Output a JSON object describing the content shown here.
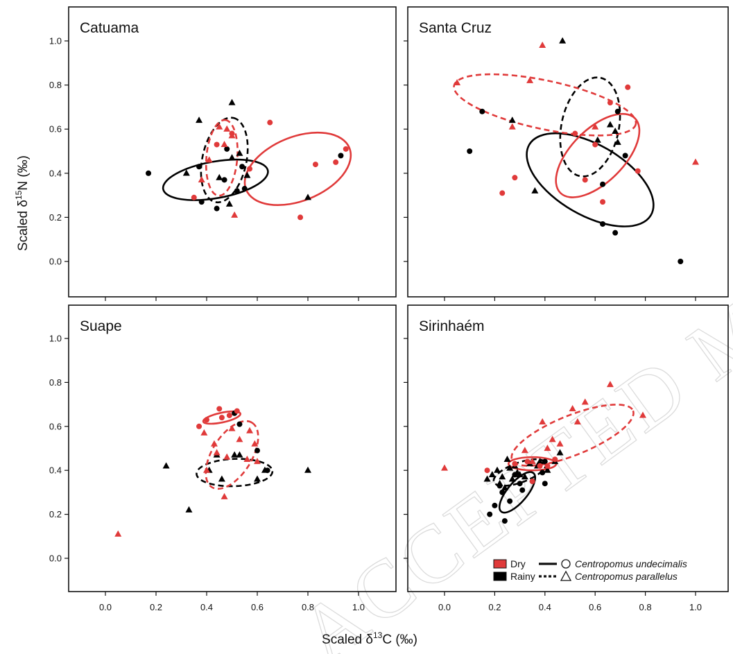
{
  "watermark": "ACCEPTED MANUSCRIPT",
  "colors": {
    "dry": "#e03a3a",
    "rainy": "#000000"
  },
  "chart_data": {
    "type": "scatter",
    "xlabel": "Scaled δ13C (‰)",
    "ylabel": "Scaled δ15N (‰)",
    "xlim": [
      -0.15,
      1.15
    ],
    "ylim": [
      -0.13,
      1.13
    ],
    "x_ticks": [
      "0.0",
      "0.2",
      "0.4",
      "0.6",
      "0.8",
      "1.0"
    ],
    "y_ticks": [
      "0.0",
      "0.2",
      "0.4",
      "0.6",
      "0.8",
      "1.0"
    ],
    "grid": false,
    "legend": {
      "placement": "bottom-right of Sirinhaém panel",
      "seasons": [
        {
          "label": "Dry",
          "color": "#e03a3a"
        },
        {
          "label": "Rainy",
          "color": "#000000"
        }
      ],
      "species": [
        {
          "label": "Centropomus undecimalis",
          "marker": "circle",
          "line": "solid"
        },
        {
          "label": "Centropomus parallelus",
          "marker": "triangle",
          "line": "dashed"
        }
      ]
    },
    "panels": [
      {
        "title": "Catuama",
        "points": [
          {
            "season": "rainy",
            "species": "undecimalis",
            "x": [
              0.17,
              0.37,
              0.38,
              0.44,
              0.48,
              0.47,
              0.52,
              0.54,
              0.55,
              0.93
            ],
            "y": [
              0.4,
              0.43,
              0.27,
              0.24,
              0.51,
              0.37,
              0.32,
              0.43,
              0.33,
              0.48
            ]
          },
          {
            "season": "rainy",
            "species": "parallelus",
            "x": [
              0.32,
              0.37,
              0.45,
              0.49,
              0.5,
              0.53,
              0.56,
              0.5,
              0.8
            ],
            "y": [
              0.4,
              0.64,
              0.38,
              0.26,
              0.72,
              0.49,
              0.39,
              0.47,
              0.29
            ]
          },
          {
            "season": "dry",
            "species": "undecimalis",
            "x": [
              0.35,
              0.44,
              0.5,
              0.57,
              0.65,
              0.77,
              0.83,
              0.91,
              0.95
            ],
            "y": [
              0.29,
              0.53,
              0.58,
              0.42,
              0.63,
              0.2,
              0.44,
              0.45,
              0.51
            ]
          },
          {
            "season": "dry",
            "species": "parallelus",
            "x": [
              0.38,
              0.41,
              0.45,
              0.47,
              0.48,
              0.5,
              0.51
            ],
            "y": [
              0.37,
              0.46,
              0.61,
              0.53,
              0.6,
              0.57,
              0.21
            ]
          }
        ],
        "ellipses": [
          {
            "season": "rainy",
            "species": "undecimalis",
            "cx": 0.435,
            "cy": 0.37,
            "rx": 0.21,
            "ry": 0.083,
            "angle": 10
          },
          {
            "season": "rainy",
            "species": "parallelus",
            "cx": 0.47,
            "cy": 0.46,
            "rx": 0.17,
            "ry": 0.1,
            "angle": 78
          },
          {
            "season": "dry",
            "species": "undecimalis",
            "cx": 0.76,
            "cy": 0.42,
            "rx": 0.22,
            "ry": 0.145,
            "angle": 22
          },
          {
            "season": "dry",
            "species": "parallelus",
            "cx": 0.46,
            "cy": 0.47,
            "rx": 0.15,
            "ry": 0.07,
            "angle": 85
          }
        ]
      },
      {
        "title": "Santa Cruz",
        "points": [
          {
            "season": "rainy",
            "species": "undecimalis",
            "x": [
              0.1,
              0.15,
              0.63,
              0.63,
              0.68,
              0.69,
              0.72,
              0.94
            ],
            "y": [
              0.5,
              0.68,
              0.35,
              0.17,
              0.13,
              0.68,
              0.48,
              0.0
            ]
          },
          {
            "season": "rainy",
            "species": "parallelus",
            "x": [
              0.27,
              0.36,
              0.47,
              0.61,
              0.66,
              0.68,
              0.69
            ],
            "y": [
              0.64,
              0.32,
              1.0,
              0.55,
              0.62,
              0.59,
              0.54
            ]
          },
          {
            "season": "dry",
            "species": "undecimalis",
            "x": [
              0.23,
              0.28,
              0.52,
              0.56,
              0.6,
              0.63,
              0.66,
              0.73,
              0.77
            ],
            "y": [
              0.31,
              0.38,
              0.58,
              0.37,
              0.53,
              0.27,
              0.72,
              0.79,
              0.41
            ]
          },
          {
            "season": "dry",
            "species": "parallelus",
            "x": [
              0.05,
              0.27,
              0.34,
              0.39,
              0.6,
              1.0
            ],
            "y": [
              0.81,
              0.61,
              0.82,
              0.98,
              0.61,
              0.45
            ]
          }
        ],
        "ellipses": [
          {
            "season": "rainy",
            "species": "undecimalis",
            "cx": 0.58,
            "cy": 0.37,
            "rx": 0.28,
            "ry": 0.16,
            "angle": -30
          },
          {
            "season": "rainy",
            "species": "parallelus",
            "cx": 0.58,
            "cy": 0.61,
            "rx": 0.2,
            "ry": 0.13,
            "angle": 78
          },
          {
            "season": "dry",
            "species": "undecimalis",
            "cx": 0.61,
            "cy": 0.48,
            "rx": 0.21,
            "ry": 0.12,
            "angle": 45
          },
          {
            "season": "dry",
            "species": "parallelus",
            "cx": 0.4,
            "cy": 0.71,
            "rx": 0.37,
            "ry": 0.11,
            "angle": -12
          }
        ]
      },
      {
        "title": "Suape",
        "points": [
          {
            "season": "rainy",
            "species": "undecimalis",
            "x": [
              0.51,
              0.53,
              0.6,
              0.64
            ],
            "y": [
              0.66,
              0.61,
              0.49,
              0.4
            ]
          },
          {
            "season": "rainy",
            "species": "parallelus",
            "x": [
              0.24,
              0.33,
              0.41,
              0.44,
              0.46,
              0.51,
              0.53,
              0.6,
              0.63,
              0.8
            ],
            "y": [
              0.42,
              0.22,
              0.4,
              0.47,
              0.36,
              0.47,
              0.47,
              0.36,
              0.4,
              0.4
            ]
          },
          {
            "season": "dry",
            "species": "undecimalis",
            "x": [
              0.37,
              0.4,
              0.45,
              0.46,
              0.49,
              0.52
            ],
            "y": [
              0.6,
              0.63,
              0.68,
              0.64,
              0.65,
              0.67
            ]
          },
          {
            "season": "dry",
            "species": "parallelus",
            "x": [
              0.05,
              0.39,
              0.4,
              0.43,
              0.44,
              0.47,
              0.48,
              0.5,
              0.53,
              0.56,
              0.57,
              0.59,
              0.6
            ],
            "y": [
              0.11,
              0.57,
              0.4,
              0.52,
              0.48,
              0.28,
              0.46,
              0.59,
              0.54,
              0.45,
              0.58,
              0.52,
              0.44
            ]
          }
        ],
        "ellipses": [
          {
            "season": "rainy",
            "species": "parallelus",
            "cx": 0.51,
            "cy": 0.39,
            "rx": 0.15,
            "ry": 0.062,
            "angle": 2
          },
          {
            "season": "dry",
            "species": "undecimalis",
            "cx": 0.46,
            "cy": 0.64,
            "rx": 0.075,
            "ry": 0.022,
            "angle": 12
          },
          {
            "season": "dry",
            "species": "parallelus",
            "cx": 0.5,
            "cy": 0.47,
            "rx": 0.15,
            "ry": 0.09,
            "angle": 58
          }
        ]
      },
      {
        "title": "Sirinhaém",
        "points": [
          {
            "season": "rainy",
            "species": "undecimalis",
            "x": [
              0.18,
              0.2,
              0.22,
              0.23,
              0.24,
              0.26,
              0.28,
              0.3,
              0.31,
              0.35,
              0.39,
              0.4,
              0.4
            ],
            "y": [
              0.2,
              0.24,
              0.33,
              0.3,
              0.17,
              0.26,
              0.38,
              0.34,
              0.31,
              0.35,
              0.39,
              0.34,
              0.44
            ]
          },
          {
            "season": "rainy",
            "species": "parallelus",
            "x": [
              0.17,
              0.19,
              0.21,
              0.22,
              0.23,
              0.24,
              0.25,
              0.26,
              0.27,
              0.28,
              0.29,
              0.3,
              0.32,
              0.34,
              0.37,
              0.38,
              0.41,
              0.44,
              0.46
            ],
            "y": [
              0.36,
              0.38,
              0.4,
              0.34,
              0.37,
              0.32,
              0.45,
              0.41,
              0.36,
              0.42,
              0.39,
              0.38,
              0.37,
              0.43,
              0.42,
              0.44,
              0.4,
              0.44,
              0.48
            ]
          },
          {
            "season": "dry",
            "species": "undecimalis",
            "x": [
              0.17,
              0.28,
              0.33,
              0.35,
              0.38,
              0.41,
              0.44
            ],
            "y": [
              0.4,
              0.43,
              0.44,
              0.35,
              0.42,
              0.42,
              0.45
            ]
          },
          {
            "season": "dry",
            "species": "parallelus",
            "x": [
              0.0,
              0.32,
              0.35,
              0.39,
              0.41,
              0.43,
              0.46,
              0.51,
              0.53,
              0.56,
              0.66,
              0.79
            ],
            "y": [
              0.41,
              0.49,
              0.44,
              0.62,
              0.5,
              0.54,
              0.52,
              0.68,
              0.62,
              0.71,
              0.79,
              0.65
            ]
          }
        ],
        "ellipses": [
          {
            "season": "rainy",
            "species": "undecimalis",
            "cx": 0.29,
            "cy": 0.3,
            "rx": 0.1,
            "ry": 0.045,
            "angle": 50
          },
          {
            "season": "rainy",
            "species": "parallelus",
            "cx": 0.3,
            "cy": 0.39,
            "rx": 0.11,
            "ry": 0.045,
            "angle": 20
          },
          {
            "season": "dry",
            "species": "undecimalis",
            "cx": 0.35,
            "cy": 0.43,
            "rx": 0.095,
            "ry": 0.03,
            "angle": 0
          },
          {
            "season": "dry",
            "species": "parallelus",
            "cx": 0.51,
            "cy": 0.56,
            "rx": 0.26,
            "ry": 0.09,
            "angle": 22
          }
        ]
      }
    ]
  }
}
